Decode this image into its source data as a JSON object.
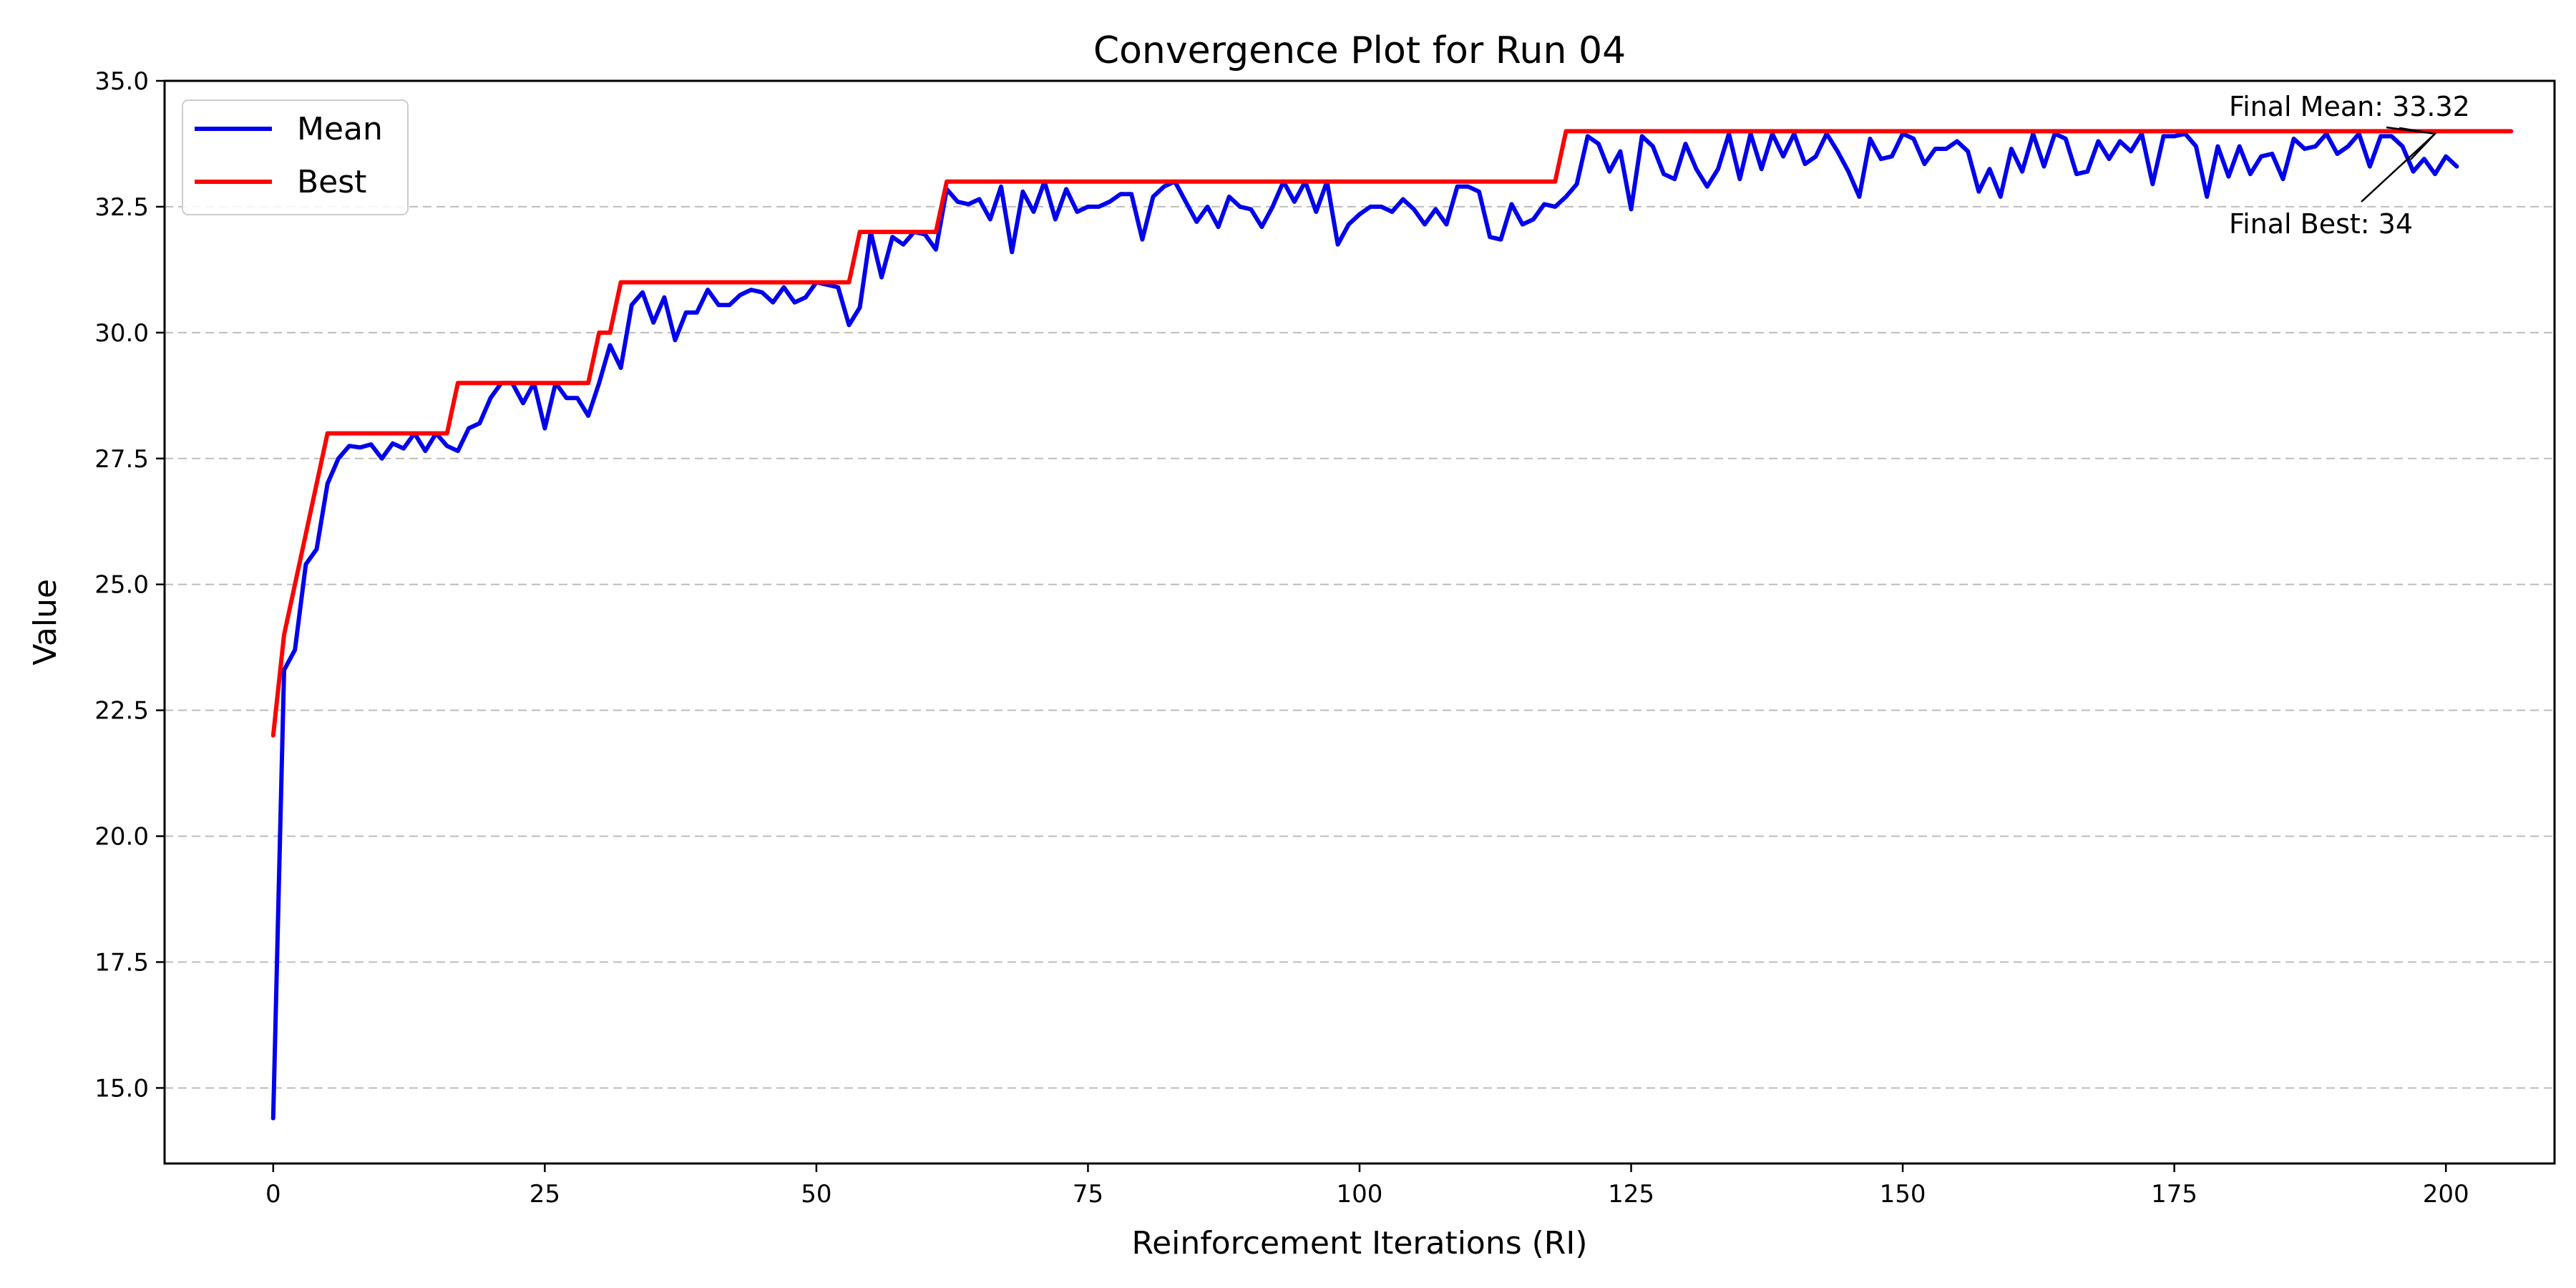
{
  "chart_data": {
    "type": "line",
    "title": "Convergence Plot for Run 04",
    "xlabel": "Reinforcement Iterations (RI)",
    "ylabel": "Value",
    "xlim": [
      -10,
      210
    ],
    "ylim": [
      13.5,
      35.0
    ],
    "xticks": [
      0,
      25,
      50,
      75,
      100,
      125,
      150,
      175,
      200
    ],
    "yticks": [
      15.0,
      17.5,
      20.0,
      22.5,
      25.0,
      27.5,
      30.0,
      32.5,
      35.0
    ],
    "xtick_labels": [
      "0",
      "25",
      "50",
      "75",
      "100",
      "125",
      "150",
      "175",
      "200"
    ],
    "ytick_labels": [
      "15.0",
      "17.5",
      "20.0",
      "22.5",
      "25.0",
      "27.5",
      "30.0",
      "32.5",
      "35.0"
    ],
    "grid": "y-dashed",
    "legend_position": "upper-left",
    "series": [
      {
        "name": "Mean",
        "color": "#0000ee",
        "values": [
          14.4,
          23.3,
          23.7,
          25.4,
          25.7,
          27.0,
          27.5,
          27.75,
          27.72,
          27.78,
          27.5,
          27.8,
          27.7,
          28.0,
          27.65,
          28.0,
          27.75,
          27.65,
          28.1,
          28.2,
          28.7,
          29.0,
          29.0,
          28.6,
          29.0,
          28.1,
          29.0,
          28.7,
          28.7,
          28.35,
          29.0,
          29.75,
          29.3,
          30.55,
          30.8,
          30.2,
          30.7,
          29.85,
          30.4,
          30.4,
          30.85,
          30.55,
          30.55,
          30.75,
          30.85,
          30.8,
          30.6,
          30.9,
          30.6,
          30.7,
          31.0,
          30.95,
          30.9,
          30.15,
          30.5,
          32.0,
          31.1,
          31.9,
          31.75,
          32.0,
          31.95,
          31.65,
          32.85,
          32.6,
          32.55,
          32.65,
          32.25,
          32.9,
          31.6,
          32.8,
          32.4,
          33.0,
          32.25,
          32.85,
          32.4,
          32.5,
          32.5,
          32.6,
          32.75,
          32.75,
          31.85,
          32.7,
          32.9,
          33.0,
          32.6,
          32.2,
          32.5,
          32.1,
          32.7,
          32.5,
          32.45,
          32.1,
          32.5,
          33.0,
          32.6,
          33.0,
          32.4,
          33.0,
          31.75,
          32.15,
          32.35,
          32.5,
          32.5,
          32.4,
          32.65,
          32.45,
          32.15,
          32.45,
          32.15,
          32.9,
          32.9,
          32.8,
          31.9,
          31.85,
          32.55,
          32.15,
          32.25,
          32.55,
          32.5,
          32.7,
          32.95,
          33.9,
          33.75,
          33.2,
          33.6,
          32.45,
          33.9,
          33.7,
          33.15,
          33.05,
          33.75,
          33.25,
          32.9,
          33.25,
          33.95,
          33.05,
          33.95,
          33.25,
          33.95,
          33.5,
          33.95,
          33.35,
          33.5,
          33.95,
          33.6,
          33.2,
          32.7,
          33.85,
          33.45,
          33.5,
          33.95,
          33.85,
          33.35,
          33.65,
          33.65,
          33.8,
          33.6,
          32.8,
          33.25,
          32.7,
          33.65,
          33.2,
          33.95,
          33.3,
          33.95,
          33.85,
          33.15,
          33.2,
          33.8,
          33.45,
          33.8,
          33.6,
          33.95,
          32.95,
          33.9,
          33.9,
          33.95,
          33.7,
          32.7,
          33.7,
          33.1,
          33.7,
          33.15,
          33.5,
          33.55,
          33.05,
          33.85,
          33.65,
          33.7,
          33.95,
          33.55,
          33.7,
          33.95,
          33.3,
          33.9,
          33.9,
          33.7,
          33.2,
          33.45,
          33.15,
          33.5,
          33.3
        ]
      },
      {
        "name": "Best",
        "color": "#ff0000",
        "values": [
          22,
          24,
          25,
          26,
          27,
          28,
          28,
          28,
          28,
          28,
          28,
          28,
          28,
          28,
          28,
          28,
          28,
          29,
          29,
          29,
          29,
          29,
          29,
          29,
          29,
          29,
          29,
          29,
          29,
          29,
          30,
          30,
          31,
          31,
          31,
          31,
          31,
          31,
          31,
          31,
          31,
          31,
          31,
          31,
          31,
          31,
          31,
          31,
          31,
          31,
          31,
          31,
          31,
          31,
          32,
          32,
          32,
          32,
          32,
          32,
          32,
          32,
          33,
          33,
          33,
          33,
          33,
          33,
          33,
          33,
          33,
          33,
          33,
          33,
          33,
          33,
          33,
          33,
          33,
          33,
          33,
          33,
          33,
          33,
          33,
          33,
          33,
          33,
          33,
          33,
          33,
          33,
          33,
          33,
          33,
          33,
          33,
          33,
          33,
          33,
          33,
          33,
          33,
          33,
          33,
          33,
          33,
          33,
          33,
          33,
          33,
          33,
          33,
          33,
          33,
          33,
          33,
          33,
          33,
          34,
          34,
          34,
          34,
          34,
          34,
          34,
          34,
          34,
          34,
          34,
          34,
          34,
          34,
          34,
          34,
          34,
          34,
          34,
          34,
          34,
          34,
          34,
          34,
          34,
          34,
          34,
          34,
          34,
          34,
          34,
          34,
          34,
          34,
          34,
          34,
          34,
          34,
          34,
          34,
          34,
          34,
          34,
          34,
          34,
          34,
          34,
          34,
          34,
          34,
          34,
          34,
          34,
          34,
          34,
          34,
          34,
          34,
          34,
          34,
          34,
          34,
          34,
          34,
          34,
          34,
          34,
          34,
          34,
          34,
          34,
          34,
          34,
          34,
          34,
          34,
          34,
          34,
          34,
          34,
          34,
          34,
          34,
          34,
          34,
          34,
          34,
          34
        ]
      }
    ],
    "annotations": [
      {
        "text": "Final Mean: 33.32",
        "x": 200,
        "y": 33.32
      },
      {
        "text": "Final Best: 34",
        "x": 200,
        "y": 34
      }
    ]
  }
}
